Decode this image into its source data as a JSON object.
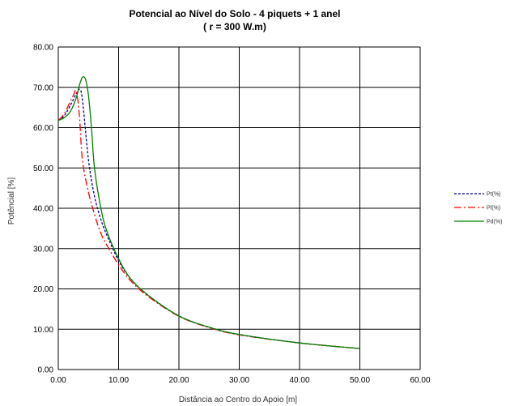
{
  "chart_data": {
    "type": "line",
    "title": "Potencial ao Nível do Solo - 4 piquets + 1 anel",
    "subtitle": "( r = 300 W.m)",
    "xlabel": "Distância ao Centro do Apoio [m]",
    "ylabel": "Potêncial [%]",
    "xlim": [
      0,
      60
    ],
    "ylim": [
      0,
      80
    ],
    "x_ticks": [
      "0.00",
      "10.00",
      "20.00",
      "30.00",
      "40.00",
      "50.00",
      "60.00"
    ],
    "y_ticks": [
      "0.00",
      "10.00",
      "20.00",
      "30.00",
      "40.00",
      "50.00",
      "60.00",
      "70.00",
      "80.00"
    ],
    "grid": true,
    "legend_position": "right",
    "series": [
      {
        "name": "Pt(%)",
        "color": "#00008b",
        "dash": "dashed",
        "x": [
          0,
          1,
          2,
          3,
          3.5,
          4,
          5,
          6,
          7,
          8,
          10,
          12,
          15,
          20,
          25,
          30,
          40,
          50
        ],
        "y": [
          61.8,
          63.0,
          65.5,
          68.5,
          69.5,
          67.0,
          52.0,
          43.0,
          37.5,
          33.5,
          27.0,
          22.5,
          18.3,
          13.3,
          10.5,
          8.7,
          6.6,
          5.2
        ]
      },
      {
        "name": "Pl(%)",
        "color": "#ff0000",
        "dash": "dashdot",
        "x": [
          0,
          1,
          2,
          2.5,
          3,
          3.5,
          4,
          5,
          6,
          7,
          8,
          10,
          12,
          15,
          20,
          25,
          30,
          40,
          50
        ],
        "y": [
          61.8,
          63.5,
          66.5,
          68.0,
          69.0,
          63.0,
          52.0,
          44.0,
          38.5,
          34.0,
          31.0,
          26.0,
          22.0,
          18.0,
          13.2,
          10.4,
          8.6,
          6.6,
          5.2
        ]
      },
      {
        "name": "Pd(%)",
        "color": "#008000",
        "dash": "solid",
        "x": [
          0,
          1,
          2,
          3,
          3.5,
          4,
          4.5,
          5,
          5.5,
          6,
          7,
          8,
          10,
          12,
          15,
          20,
          25,
          30,
          40,
          50
        ],
        "y": [
          61.8,
          62.5,
          64.0,
          67.5,
          70.5,
          72.5,
          72.0,
          68.0,
          60.0,
          50.0,
          40.5,
          34.5,
          27.5,
          22.5,
          18.3,
          13.3,
          10.5,
          8.7,
          6.6,
          5.2
        ]
      }
    ]
  }
}
